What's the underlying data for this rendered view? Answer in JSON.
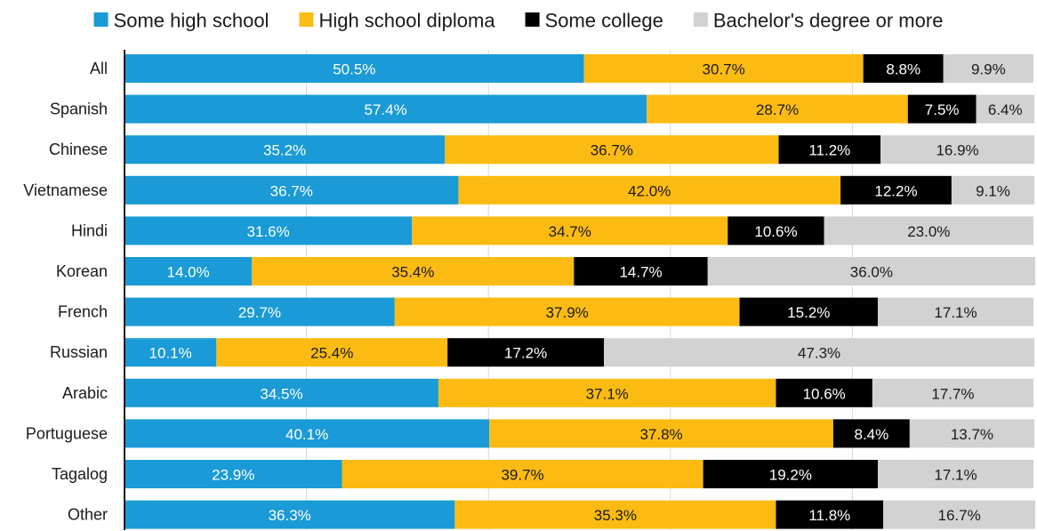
{
  "chart_data": {
    "type": "bar",
    "orientation": "horizontal",
    "stacked": true,
    "title": "",
    "xlabel": "",
    "ylabel": "",
    "xlim": [
      0,
      100
    ],
    "grid": true,
    "legend_position": "top",
    "categories": [
      "All",
      "Spanish",
      "Chinese",
      "Vietnamese",
      "Hindi",
      "Korean",
      "French",
      "Russian",
      "Arabic",
      "Portuguese",
      "Tagalog",
      "Other"
    ],
    "series": [
      {
        "name": "Some high school",
        "color": "#1a9ad6",
        "label_color": "#ffffff",
        "values": [
          50.5,
          57.4,
          35.2,
          36.7,
          31.6,
          14.0,
          29.7,
          10.1,
          34.5,
          40.1,
          23.9,
          36.3
        ],
        "labels": [
          "50.5%",
          "57.4%",
          "35.2%",
          "36.7%",
          "31.6%",
          "14.0%",
          "29.7%",
          "10.1%",
          "34.5%",
          "40.1%",
          "23.9%",
          "36.3%"
        ]
      },
      {
        "name": "High school diploma",
        "color": "#fcbb12",
        "label_color": "#1a1a1a",
        "values": [
          30.7,
          28.7,
          36.7,
          42.0,
          34.7,
          35.4,
          37.9,
          25.4,
          37.1,
          37.8,
          39.7,
          35.3
        ],
        "labels": [
          "30.7%",
          "28.7%",
          "36.7%",
          "42.0%",
          "34.7%",
          "35.4%",
          "37.9%",
          "25.4%",
          "37.1%",
          "37.8%",
          "39.7%",
          "35.3%"
        ]
      },
      {
        "name": "Some college",
        "color": "#000000",
        "label_color": "#ffffff",
        "values": [
          8.8,
          7.5,
          11.2,
          12.2,
          10.6,
          14.7,
          15.2,
          17.2,
          10.6,
          8.4,
          19.2,
          11.8
        ],
        "labels": [
          "8.8%",
          "7.5%",
          "11.2%",
          "12.2%",
          "10.6%",
          "14.7%",
          "15.2%",
          "17.2%",
          "10.6%",
          "8.4%",
          "19.2%",
          "11.8%"
        ]
      },
      {
        "name": "Bachelor's degree or more",
        "color": "#d2d2d2",
        "label_color": "#1a1a1a",
        "values": [
          9.9,
          6.4,
          16.9,
          9.1,
          23.0,
          36.0,
          17.1,
          47.3,
          17.7,
          13.7,
          17.1,
          16.7
        ],
        "labels": [
          "9.9%",
          "6.4%",
          "16.9%",
          "9.1%",
          "23.0%",
          "36.0%",
          "17.1%",
          "47.3%",
          "17.7%",
          "13.7%",
          "17.1%",
          "16.7%"
        ]
      }
    ]
  }
}
